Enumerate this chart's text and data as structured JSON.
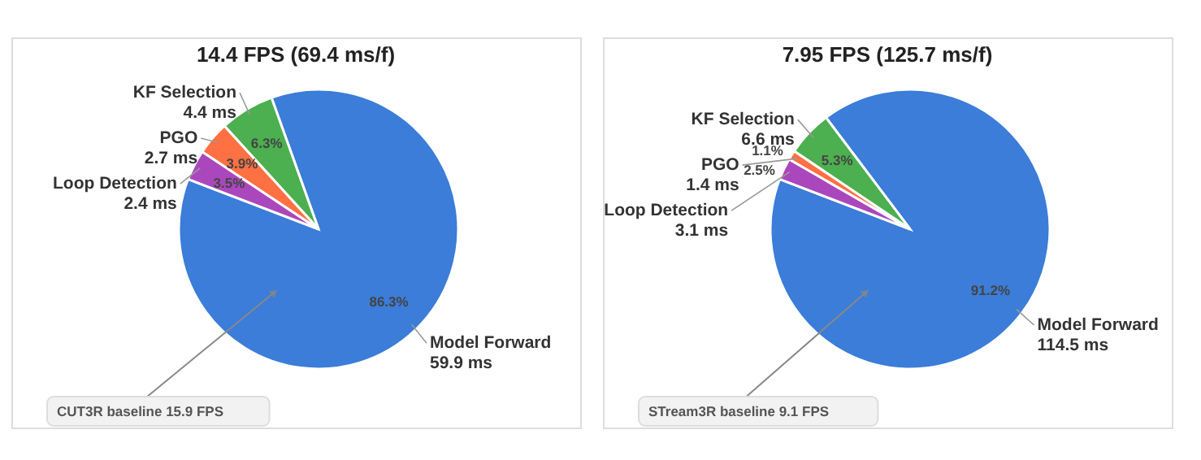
{
  "chart_data": [
    {
      "type": "pie",
      "title": "14.4 FPS (69.4 ms/f)",
      "categories": [
        "Model Forward\n59.9 ms",
        "KF Selection\n4.4 ms",
        "PGO\n2.7 ms",
        "Loop Detection\n2.4 ms"
      ],
      "values": [
        86.3,
        6.3,
        3.9,
        3.5
      ],
      "colors": [
        "#3b7dd8",
        "#4caf50",
        "#ff7043",
        "#ab47bc"
      ],
      "value_labels": [
        "86.3%",
        "6.3%",
        "3.9%",
        "3.5%"
      ],
      "annotations": [
        "CUT3R baseline  15.9 FPS"
      ]
    },
    {
      "type": "pie",
      "title": "7.95 FPS (125.7 ms/f)",
      "categories": [
        "Model Forward\n114.5 ms",
        "KF Selection\n6.6 ms",
        "PGO\n1.4 ms",
        "Loop Detection\n3.1 ms"
      ],
      "values": [
        91.2,
        5.3,
        1.1,
        2.5
      ],
      "colors": [
        "#3b7dd8",
        "#4caf50",
        "#ff7043",
        "#ab47bc"
      ],
      "value_labels": [
        "91.2%",
        "5.3%",
        "1.1%",
        "2.5%"
      ],
      "annotations": [
        "STream3R baseline  9.1 FPS"
      ]
    }
  ]
}
